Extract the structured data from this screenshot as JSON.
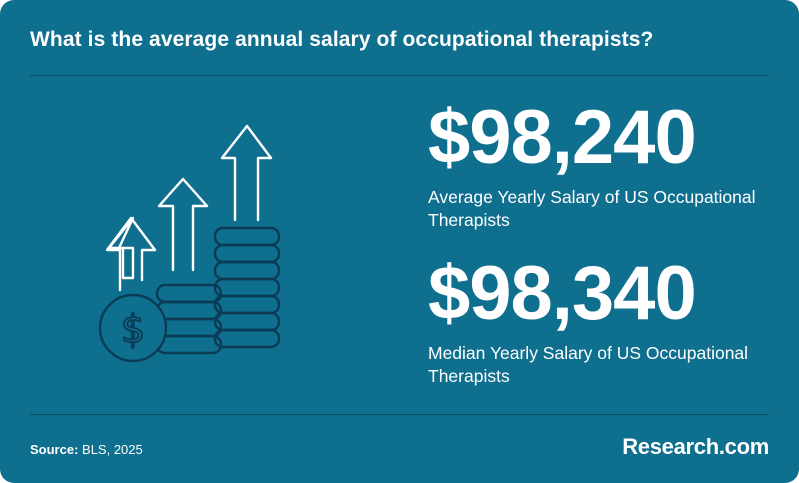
{
  "header": {
    "title": "What is the average annual salary of occupational therapists?"
  },
  "stats": [
    {
      "value": "$98,240",
      "label": "Average Yearly Salary of US Occupational Therapists"
    },
    {
      "value": "$98,340",
      "label": "Median Yearly Salary of US Occupational Therapists"
    }
  ],
  "illustration": {
    "icon": "coins-with-rising-arrows-icon",
    "coin_symbol": "$"
  },
  "footer": {
    "source_label": "Source:",
    "source_text": " BLS, 2025",
    "brand": "Research.com"
  },
  "colors": {
    "background": "#0f6f8f",
    "text": "#ffffff",
    "icon_stroke": "#0b3b55",
    "divider": "#0a4a63"
  }
}
